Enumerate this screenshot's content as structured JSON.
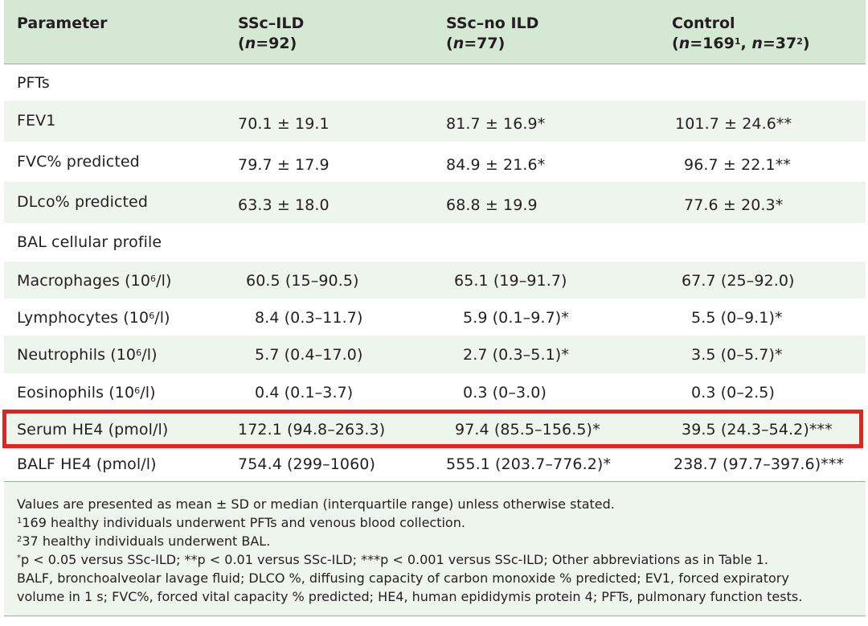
{
  "header": {
    "col1": "Parameter",
    "col2_line1": "SSc–ILD",
    "col2_n": "n",
    "col2_val": "=92",
    "col3_line1": "SSc–no ILD",
    "col3_n": "n",
    "col3_val": "=77",
    "col4_line1": "Control",
    "col4_n1": "n",
    "col4_val1": "=169",
    "col4_sup1": "1",
    "col4_n2": "n",
    "col4_val2": "=37",
    "col4_sup2": "2"
  },
  "sections": {
    "pfts": "PFTs",
    "bal": "BAL cellular profile"
  },
  "rows": {
    "fev1": {
      "label": "FEV1",
      "ild": "70.1 ± 19.1",
      "noild": "81.7 ± 16.9*",
      "control": "101.7 ± 24.6**"
    },
    "fvc": {
      "label": "FVC% predicted",
      "ild": "79.7 ± 17.9",
      "noild": "84.9 ± 21.6*",
      "control": "96.7 ± 22.1**"
    },
    "dlco": {
      "label": "DLco% predicted",
      "ild": "63.3 ± 18.0",
      "noild": "68.8 ± 19.9",
      "control": "77.6 ± 20.3*"
    },
    "macro": {
      "label_pre": "Macrophages (10",
      "label_sup": "6",
      "label_post": "/l)",
      "ild": "60.5 (15–90.5)",
      "noild": "65.1 (19–91.7)",
      "control": "67.7 (25–92.0)"
    },
    "lympho": {
      "label_pre": "Lymphocytes (10",
      "label_sup": "6",
      "label_post": "/l)",
      "ild": "8.4 (0.3–11.7)",
      "noild": "5.9 (0.1–9.7)*",
      "control": "5.5 (0–9.1)*"
    },
    "neutro": {
      "label_pre": "Neutrophils (10",
      "label_sup": "6",
      "label_post": "/l)",
      "ild": "5.7 (0.4–17.0)",
      "noild": "2.7 (0.3–5.1)*",
      "control": "3.5 (0–5.7)*"
    },
    "eosino": {
      "label_pre": "Eosinophils (10",
      "label_sup": "6",
      "label_post": "/l)",
      "ild": "0.4 (0.1–3.7)",
      "noild": "0.3 (0–3.0)",
      "control": "0.3 (0–2.5)"
    },
    "serum": {
      "label": "Serum HE4 (pmol/l)",
      "ild": "172.1 (94.8–263.3)",
      "noild": "97.4 (85.5–156.5)*",
      "control": "39.5 (24.3–54.2)***"
    },
    "balf": {
      "label": "BALF HE4 (pmol/l)",
      "ild": "754.4 (299–1060)",
      "noild": "555.1 (203.7–776.2)*",
      "control": "238.7 (97.7–397.6)***"
    }
  },
  "footnotes": {
    "line1": "Values are presented as mean ± SD or median (interquartile range) unless otherwise stated.",
    "line2_sup": "1",
    "line2": "169 healthy individuals underwent PFTs and venous blood collection.",
    "line3_sup": "2",
    "line3": "37 healthy individuals underwent BAL.",
    "line4_sup": "*",
    "line4": "p < 0.05 versus SSc-ILD; **p < 0.01 versus SSc-ILD; ***p < 0.001 versus SSc-ILD; Other abbreviations as in Table 1.",
    "line5": "BALF, bronchoalveolar lavage fluid; DLCO %, diffusing capacity of carbon monoxide % predicted; EV1, forced expiratory",
    "line6": "volume in 1 s; FVC%, forced vital capacity % predicted; HE4, human epididymis protein 4; PFTs, pulmonary function tests."
  },
  "colors": {
    "header_bg": "#d5e8d3",
    "shade_bg": "#eef5ec",
    "rule": "#8fb98a",
    "highlight": "#e8201e"
  }
}
